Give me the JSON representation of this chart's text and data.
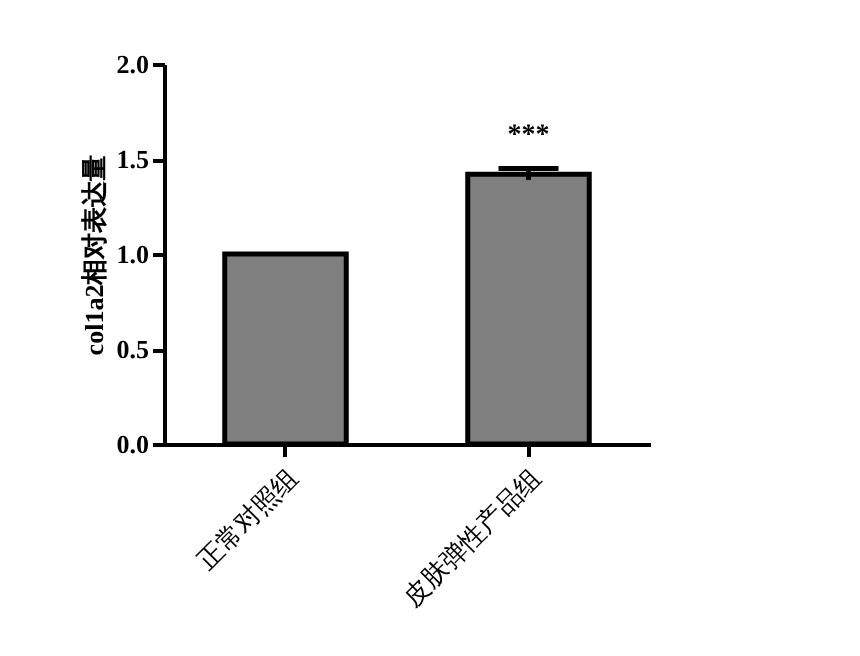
{
  "chart_data": {
    "type": "bar",
    "ylabel": "col1a2相对表达量",
    "categories": [
      "正常对照组",
      "皮肤弹性产品组"
    ],
    "values": [
      1.0,
      1.42
    ],
    "color": "#808080",
    "errors": [
      null,
      0.03
    ],
    "annotations": [
      {
        "text": "***",
        "x": "皮肤弹性产品组",
        "y": 1.45
      }
    ],
    "ylim": [
      0,
      2.0
    ],
    "yticks": [
      {
        "value": 0,
        "label": "0.0"
      },
      {
        "value": 0.5,
        "label": "0.5"
      },
      {
        "value": 1,
        "label": "1.0"
      },
      {
        "value": 1.5,
        "label": "1.5"
      },
      {
        "value": 2,
        "label": "2.0"
      }
    ],
    "grid": false
  }
}
